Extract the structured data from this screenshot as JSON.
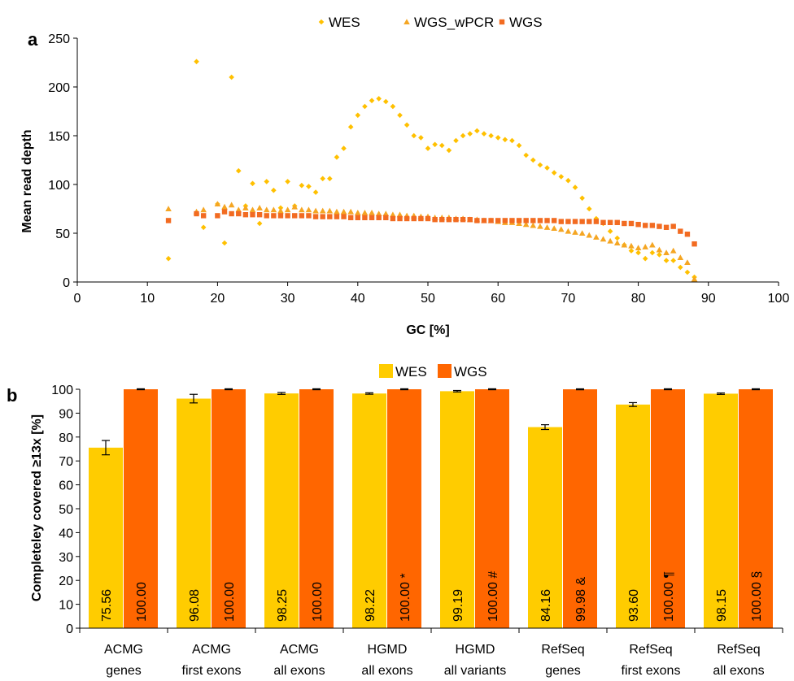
{
  "chart_data": [
    {
      "panel": "a",
      "type": "scatter",
      "xlabel": "GC [%]",
      "ylabel": "Mean read depth",
      "xlim": [
        0,
        100
      ],
      "ylim": [
        0,
        250
      ],
      "xticks": [
        0,
        10,
        20,
        30,
        40,
        50,
        60,
        70,
        80,
        90,
        100
      ],
      "yticks": [
        0,
        50,
        100,
        150,
        200,
        250
      ],
      "legend_position": "top-center",
      "grid": false,
      "series": [
        {
          "name": "WES",
          "color": "#FFC000",
          "marker": "diamond",
          "x": [
            13,
            17,
            18,
            20,
            21,
            22,
            23,
            24,
            25,
            26,
            27,
            28,
            29,
            30,
            31,
            32,
            33,
            34,
            35,
            36,
            37,
            38,
            39,
            40,
            41,
            42,
            43,
            44,
            45,
            46,
            47,
            48,
            49,
            50,
            51,
            52,
            53,
            54,
            55,
            56,
            57,
            58,
            59,
            60,
            61,
            62,
            63,
            64,
            65,
            66,
            67,
            68,
            69,
            70,
            71,
            72,
            73,
            74,
            75,
            76,
            77,
            78,
            79,
            80,
            81,
            82,
            83,
            84,
            85,
            86,
            87,
            88
          ],
          "y": [
            24,
            226,
            56,
            80,
            40,
            210,
            114,
            78,
            101,
            60,
            103,
            94,
            76,
            103,
            78,
            99,
            98,
            92,
            106,
            106,
            128,
            137,
            159,
            171,
            180,
            186,
            188,
            185,
            180,
            171,
            161,
            150,
            148,
            137,
            141,
            140,
            135,
            145,
            150,
            152,
            155,
            152,
            150,
            148,
            146,
            145,
            140,
            130,
            125,
            120,
            117,
            112,
            108,
            104,
            97,
            86,
            75,
            65,
            60,
            52,
            45,
            38,
            32,
            30,
            24,
            30,
            28,
            22,
            22,
            15,
            10,
            5
          ]
        },
        {
          "name": "WGS_wPCR",
          "color": "#F5A623",
          "marker": "triangle",
          "x": [
            13,
            17,
            18,
            20,
            21,
            22,
            23,
            24,
            25,
            26,
            27,
            28,
            29,
            30,
            31,
            32,
            33,
            34,
            35,
            36,
            37,
            38,
            39,
            40,
            41,
            42,
            43,
            44,
            45,
            46,
            47,
            48,
            49,
            50,
            51,
            52,
            53,
            54,
            55,
            56,
            57,
            58,
            59,
            60,
            61,
            62,
            63,
            64,
            65,
            66,
            67,
            68,
            69,
            70,
            71,
            72,
            73,
            74,
            75,
            76,
            77,
            78,
            79,
            80,
            81,
            82,
            83,
            84,
            85,
            86,
            87,
            88
          ],
          "y": [
            75,
            72,
            74,
            80,
            77,
            79,
            74,
            76,
            74,
            76,
            74,
            74,
            73,
            74,
            77,
            74,
            74,
            73,
            73,
            73,
            72,
            72,
            72,
            71,
            71,
            71,
            70,
            70,
            69,
            69,
            68,
            68,
            67,
            67,
            66,
            66,
            66,
            65,
            65,
            64,
            64,
            63,
            63,
            62,
            61,
            61,
            60,
            59,
            58,
            57,
            56,
            55,
            54,
            52,
            51,
            50,
            48,
            46,
            44,
            42,
            40,
            38,
            37,
            35,
            36,
            38,
            33,
            30,
            32,
            25,
            20,
            3
          ]
        },
        {
          "name": "WGS",
          "color": "#F26B21",
          "marker": "square",
          "x": [
            13,
            17,
            18,
            20,
            21,
            22,
            23,
            24,
            25,
            26,
            27,
            28,
            29,
            30,
            31,
            32,
            33,
            34,
            35,
            36,
            37,
            38,
            39,
            40,
            41,
            42,
            43,
            44,
            45,
            46,
            47,
            48,
            49,
            50,
            51,
            52,
            53,
            54,
            55,
            56,
            57,
            58,
            59,
            60,
            61,
            62,
            63,
            64,
            65,
            66,
            67,
            68,
            69,
            70,
            71,
            72,
            73,
            74,
            75,
            76,
            77,
            78,
            79,
            80,
            81,
            82,
            83,
            84,
            85,
            86,
            87,
            88
          ],
          "y": [
            63,
            70,
            68,
            68,
            72,
            70,
            70,
            69,
            69,
            69,
            68,
            68,
            68,
            68,
            68,
            68,
            68,
            67,
            67,
            67,
            67,
            67,
            66,
            66,
            66,
            66,
            66,
            66,
            65,
            65,
            65,
            65,
            65,
            65,
            64,
            64,
            64,
            64,
            64,
            64,
            63,
            63,
            63,
            63,
            63,
            63,
            63,
            63,
            63,
            63,
            63,
            63,
            62,
            62,
            62,
            62,
            62,
            62,
            61,
            61,
            61,
            60,
            60,
            59,
            58,
            58,
            57,
            56,
            57,
            52,
            49,
            39
          ]
        }
      ]
    },
    {
      "panel": "b",
      "type": "bar",
      "ylabel": "Completeley covered ≥13x [%]",
      "ylim": [
        0,
        100
      ],
      "yticks": [
        0,
        10,
        20,
        30,
        40,
        50,
        60,
        70,
        80,
        90,
        100
      ],
      "legend_position": "top-center",
      "grid": false,
      "categories": [
        [
          "ACMG",
          "genes"
        ],
        [
          "ACMG",
          "first exons"
        ],
        [
          "ACMG",
          "all exons"
        ],
        [
          "HGMD",
          "all exons"
        ],
        [
          "HGMD",
          "all variants"
        ],
        [
          "RefSeq",
          "genes"
        ],
        [
          "RefSeq",
          "first exons"
        ],
        [
          "RefSeq",
          "all exons"
        ]
      ],
      "series": [
        {
          "name": "WES",
          "color": "#FFCC00",
          "values": [
            75.56,
            96.08,
            98.25,
            98.22,
            99.19,
            84.16,
            93.6,
            98.15
          ],
          "error": [
            3.0,
            1.8,
            0.4,
            0.3,
            0.3,
            1.0,
            0.8,
            0.3
          ],
          "labels": [
            "75.56",
            "96.08",
            "98.25",
            "98.22",
            "99.19",
            "84.16",
            "93.60",
            "98.15"
          ]
        },
        {
          "name": "WGS",
          "color": "#FF6600",
          "values": [
            100.0,
            100.0,
            100.0,
            100.0,
            100.0,
            99.98,
            100.0,
            100.0
          ],
          "error": [
            0.2,
            0.2,
            0.2,
            0.2,
            0.2,
            0.2,
            0.2,
            0.2
          ],
          "labels": [
            "100.00",
            "100.00",
            "100.00",
            "100.00 *",
            "100.00 #",
            "99.98 &",
            "100.00 ¶",
            "100.00 §"
          ]
        }
      ]
    }
  ]
}
